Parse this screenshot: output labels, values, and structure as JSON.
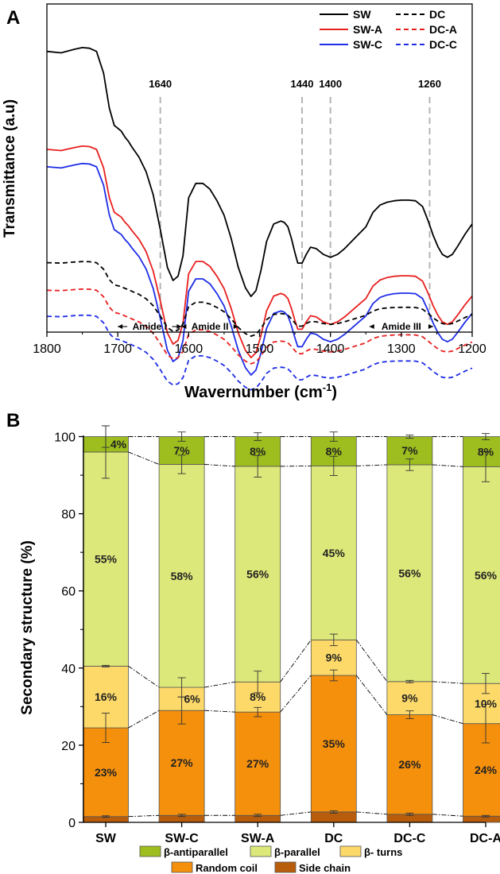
{
  "chart_data": [
    {
      "panel_label": "A",
      "type": "line",
      "xlabel": "Wavernumber (cm",
      "xlabel_sup": "-1",
      "xlabel_end": ")",
      "ylabel": "Transmittance (a.u)",
      "xlim": [
        1800,
        1200
      ],
      "xticks": [
        "1800",
        "1700",
        "1600",
        "1500",
        "1400",
        "1300",
        "1200"
      ],
      "reference_lines": [
        {
          "x": 1640,
          "label": "1640"
        },
        {
          "x": 1440,
          "label": "1440"
        },
        {
          "x": 1400,
          "label": "1400"
        },
        {
          "x": 1260,
          "label": "1260"
        }
      ],
      "bands": [
        {
          "label": "Amide I",
          "from": 1700,
          "to": 1610
        },
        {
          "label": "Amide II",
          "from": 1610,
          "to": 1530
        },
        {
          "label": "Amide III",
          "from": 1345,
          "to": 1255
        }
      ],
      "legend": [
        {
          "name": "SW",
          "color": "#000000",
          "dashed": false
        },
        {
          "name": "DC",
          "color": "#000000",
          "dashed": true
        },
        {
          "name": "SW-A",
          "color": "#e8201f",
          "dashed": false
        },
        {
          "name": "DC-A",
          "color": "#e8201f",
          "dashed": true
        },
        {
          "name": "SW-C",
          "color": "#1e2de6",
          "dashed": false
        },
        {
          "name": "DC-C",
          "color": "#1e2de6",
          "dashed": true
        }
      ],
      "spectrum_points": {
        "x": [
          1800,
          1780,
          1760,
          1750,
          1740,
          1730,
          1720,
          1712,
          1705,
          1700,
          1695,
          1690,
          1685,
          1680,
          1670,
          1660,
          1650,
          1640,
          1630,
          1622,
          1615,
          1608,
          1600,
          1590,
          1580,
          1570,
          1560,
          1550,
          1540,
          1530,
          1520,
          1512,
          1505,
          1498,
          1490,
          1480,
          1470,
          1465,
          1460,
          1455,
          1450,
          1446,
          1440,
          1434,
          1428,
          1420,
          1410,
          1400,
          1390,
          1380,
          1370,
          1360,
          1350,
          1340,
          1330,
          1320,
          1310,
          1300,
          1290,
          1280,
          1270,
          1262,
          1255,
          1248,
          1242,
          1235,
          1228,
          1220,
          1210,
          1200
        ],
        "y": [
          9.05,
          9.0,
          9.13,
          9.18,
          9.16,
          9.05,
          8.3,
          7.1,
          6.5,
          6.4,
          6.3,
          6.1,
          5.95,
          5.75,
          5.4,
          4.9,
          4.1,
          2.9,
          1.6,
          1.15,
          1.3,
          2.0,
          4.0,
          4.5,
          4.5,
          4.3,
          3.9,
          3.4,
          2.6,
          1.6,
          0.9,
          0.6,
          0.8,
          1.5,
          2.5,
          3.1,
          3.2,
          3.15,
          3.0,
          2.6,
          2.1,
          1.75,
          1.75,
          2.05,
          2.3,
          2.25,
          2.05,
          1.95,
          2.05,
          2.25,
          2.5,
          2.75,
          3.0,
          3.5,
          3.75,
          3.85,
          3.9,
          3.92,
          3.92,
          3.9,
          3.7,
          3.2,
          2.7,
          2.3,
          2.05,
          1.95,
          2.05,
          2.35,
          2.75,
          3.1
        ]
      },
      "series_curves": [
        {
          "name": "SW",
          "offset": 0.0,
          "scale": 1.0
        },
        {
          "name": "SW-A",
          "offset": -2.02,
          "scale": 0.85
        },
        {
          "name": "SW-C",
          "offset": -2.62,
          "scale": 0.85
        },
        {
          "name": "DC",
          "offset": -0.95,
          "scale": 0.3
        },
        {
          "name": "DC-A",
          "offset": -1.9,
          "scale": 0.3
        },
        {
          "name": "DC-C",
          "offset": -2.8,
          "scale": 0.3
        }
      ]
    },
    {
      "panel_label": "B",
      "type": "bar",
      "stacked": true,
      "ylabel": "Secondary structure (%)",
      "ylim": [
        0,
        100
      ],
      "yticks": [
        "0",
        "20",
        "40",
        "60",
        "80",
        "100"
      ],
      "categories": [
        "SW",
        "SW-C",
        "SW-A",
        "DC",
        "DC-C",
        "DC-A"
      ],
      "series": [
        {
          "name": "Side chain",
          "color": "#b85d0c",
          "values": [
            1.5,
            1.8,
            1.8,
            2.7,
            2.1,
            1.6
          ],
          "labels": [
            "",
            "",
            "",
            "",
            "",
            ""
          ]
        },
        {
          "name": "Random coil",
          "color": "#f4900c",
          "values": [
            23.0,
            27.2,
            26.8,
            35.4,
            25.8,
            24.0
          ],
          "labels": [
            "23%",
            "27%",
            "27%",
            "35%",
            "26%",
            "24%"
          ]
        },
        {
          "name": "β- turns",
          "color": "#fcd968",
          "values": [
            16.0,
            6.0,
            7.8,
            9.2,
            8.6,
            10.4
          ],
          "labels": [
            "16%",
            "6%",
            "8%",
            "9%",
            "9%",
            "10%"
          ]
        },
        {
          "name": "β-parallel",
          "color": "#dde87a",
          "values": [
            55.5,
            57.8,
            55.9,
            45.1,
            56.2,
            56.2
          ],
          "labels": [
            "55%",
            "58%",
            "56%",
            "45%",
            "56%",
            "56%"
          ]
        },
        {
          "name": "β-antiparallel",
          "color": "#9ebd1e",
          "values": [
            4.0,
            7.2,
            7.7,
            7.6,
            7.3,
            7.8
          ],
          "labels": [
            "4%",
            "7%",
            "8%",
            "8%",
            "7%",
            "8%"
          ]
        }
      ],
      "error_bars": [
        [
          0.2,
          0.3,
          0.3,
          0.3,
          0.3,
          0.2
        ],
        [
          3.8,
          3.5,
          1.2,
          1.4,
          1.0,
          5.0
        ],
        [
          0.2,
          2.5,
          2.8,
          1.5,
          0.3,
          2.6
        ],
        [
          6.8,
          2.4,
          2.8,
          2.5,
          1.5,
          3.9
        ],
        [
          2.8,
          1.2,
          1.0,
          1.2,
          0.4,
          0.8
        ]
      ],
      "legend": [
        "β-antiparallel",
        "β-parallel",
        "β- turns",
        "Random coil",
        "Side chain"
      ]
    }
  ]
}
